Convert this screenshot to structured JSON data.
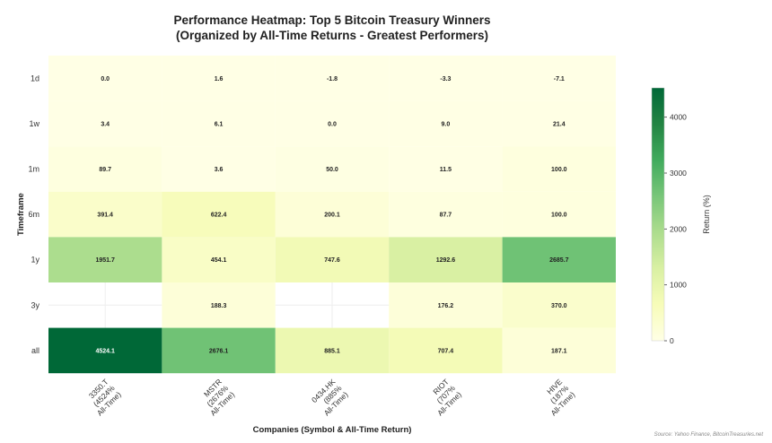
{
  "title": "Performance Heatmap: Top 5 Bitcoin Treasury Winners",
  "subtitle": "(Organized by All-Time Returns - Greatest Performers)",
  "source": "Source: Yahoo Finance, BitcoinTreasuries.net",
  "chart_data": {
    "type": "heatmap",
    "xlabel": "Companies (Symbol & All-Time Return)",
    "ylabel": "Timeframe",
    "x_categories": [
      [
        "3350.T",
        "(4524%",
        "All-Time)"
      ],
      [
        "MSTR",
        "(2676%",
        "All-Time)"
      ],
      [
        "0434.HK",
        "(885%",
        "All-Time)"
      ],
      [
        "RIOT",
        "(707%",
        "All-Time)"
      ],
      [
        "HIVE",
        "(187%",
        "All-Time)"
      ]
    ],
    "y_categories": [
      "1d",
      "1w",
      "1m",
      "6m",
      "1y",
      "3y",
      "all"
    ],
    "values": [
      [
        0.0,
        1.6,
        -1.8,
        -3.3,
        -7.1
      ],
      [
        3.4,
        6.1,
        0.0,
        9.0,
        21.4
      ],
      [
        89.7,
        3.6,
        50.0,
        11.5,
        100.0
      ],
      [
        391.4,
        622.4,
        200.1,
        87.7,
        100.0
      ],
      [
        1951.7,
        454.1,
        747.6,
        1292.6,
        2685.7
      ],
      [
        null,
        188.3,
        null,
        176.2,
        370.0
      ],
      [
        4524.1,
        2676.1,
        885.1,
        707.4,
        187.1
      ]
    ],
    "colorbar": {
      "label": "Return (%)",
      "range": [
        0,
        4524.1
      ],
      "ticks": [
        0,
        1000,
        2000,
        3000,
        4000
      ],
      "colormap": "YlGn",
      "colors": [
        "#ffffe5",
        "#f7fcb9",
        "#d9f0a3",
        "#addd8e",
        "#78c679",
        "#41ab5d",
        "#238443",
        "#006837"
      ]
    }
  }
}
